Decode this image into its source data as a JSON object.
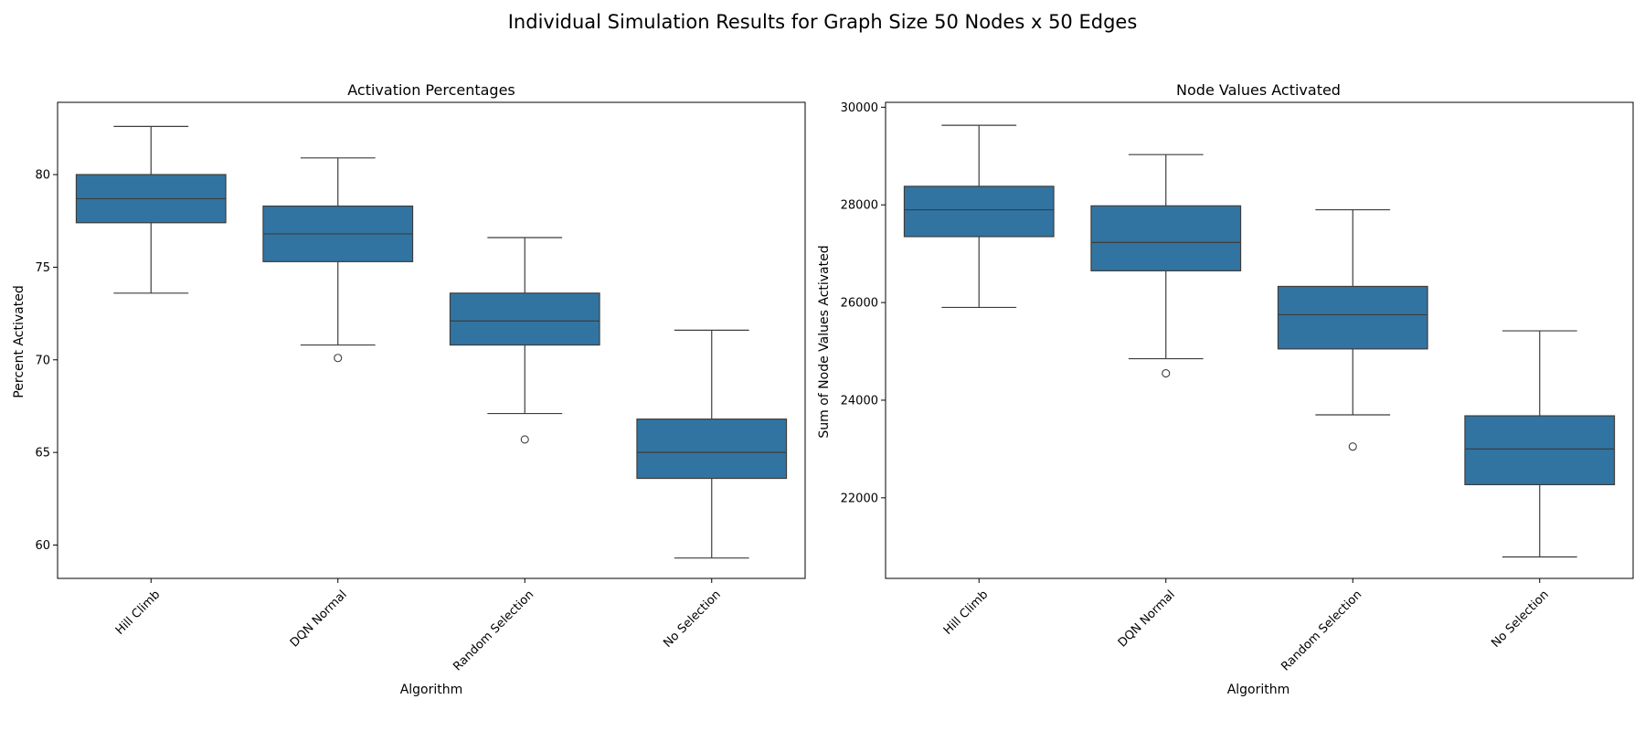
{
  "figure": {
    "suptitle": "Individual Simulation Results for Graph Size 50 Nodes x 50 Edges"
  },
  "chart_data": [
    {
      "type": "box",
      "title": "Activation Percentages",
      "xlabel": "Algorithm",
      "ylabel": "Percent Activated",
      "ylim": [
        58.2,
        83.9
      ],
      "yticks": [
        60,
        65,
        70,
        75,
        80
      ],
      "ytick_labels": [
        "60",
        "65",
        "70",
        "75",
        "80"
      ],
      "categories": [
        "Hill Climb",
        "DQN Normal",
        "Random Selection",
        "No Selection"
      ],
      "box_color": "#3274a1",
      "boxes": [
        {
          "whisker_low": 73.6,
          "q1": 77.4,
          "median": 78.7,
          "q3": 80.0,
          "whisker_high": 82.6,
          "outliers": []
        },
        {
          "whisker_low": 70.8,
          "q1": 75.3,
          "median": 76.8,
          "q3": 78.3,
          "whisker_high": 80.9,
          "outliers": [
            70.1
          ]
        },
        {
          "whisker_low": 67.1,
          "q1": 70.8,
          "median": 72.1,
          "q3": 73.6,
          "whisker_high": 76.6,
          "outliers": [
            65.7
          ]
        },
        {
          "whisker_low": 59.3,
          "q1": 63.6,
          "median": 65.0,
          "q3": 66.8,
          "whisker_high": 71.6,
          "outliers": []
        }
      ]
    },
    {
      "type": "box",
      "title": "Node Values Activated",
      "xlabel": "Algorithm",
      "ylabel": "Sum of Node Values Activated",
      "ylim": [
        20350,
        30100
      ],
      "yticks": [
        22000,
        24000,
        26000,
        28000,
        30000
      ],
      "ytick_labels": [
        "22000",
        "24000",
        "26000",
        "28000",
        "30000"
      ],
      "categories": [
        "Hill Climb",
        "DQN Normal",
        "Random Selection",
        "No Selection"
      ],
      "box_color": "#3274a1",
      "boxes": [
        {
          "whisker_low": 25900,
          "q1": 27350,
          "median": 27900,
          "q3": 28380,
          "whisker_high": 29630,
          "outliers": []
        },
        {
          "whisker_low": 24850,
          "q1": 26650,
          "median": 27230,
          "q3": 27980,
          "whisker_high": 29030,
          "outliers": [
            24550
          ]
        },
        {
          "whisker_low": 23700,
          "q1": 25050,
          "median": 25750,
          "q3": 26330,
          "whisker_high": 27900,
          "outliers": [
            23050
          ]
        },
        {
          "whisker_low": 20790,
          "q1": 22270,
          "median": 23000,
          "q3": 23680,
          "whisker_high": 25420,
          "outliers": []
        }
      ]
    }
  ]
}
